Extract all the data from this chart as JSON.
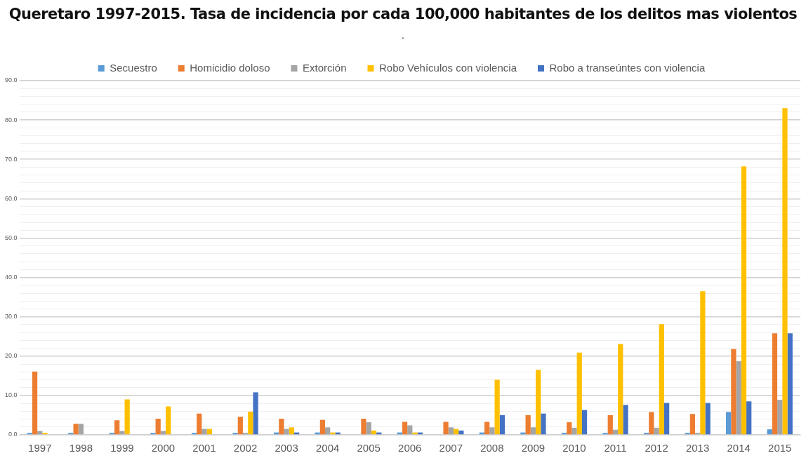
{
  "chart_data": {
    "type": "bar",
    "title": "Queretaro 1997-2015. Tasa de incidencia por cada 100,000 habitantes de los delitos mas violentos",
    "subtitle": ".",
    "categories": [
      "1997",
      "1998",
      "1999",
      "2000",
      "2001",
      "2002",
      "2003",
      "2004",
      "2005",
      "2006",
      "2007",
      "2008",
      "2009",
      "2010",
      "2011",
      "2012",
      "2013",
      "2014",
      "2015"
    ],
    "series": [
      {
        "name": "Secuestro",
        "color": "#5b9bd5",
        "values": [
          0.5,
          0.5,
          0.5,
          0.5,
          0.5,
          0.5,
          0.6,
          0.6,
          0,
          0.6,
          0,
          0.6,
          0.6,
          0.5,
          0.5,
          0.5,
          0.5,
          5.8,
          1.4
        ]
      },
      {
        "name": "Homicidio doloso",
        "color": "#ed7d31",
        "values": [
          16.1,
          2.8,
          3.7,
          4.1,
          5.4,
          4.6,
          4.1,
          3.8,
          4.1,
          3.3,
          3.3,
          3.3,
          5.0,
          3.2,
          5.0,
          5.8,
          5.3,
          21.8,
          25.8
        ]
      },
      {
        "name": "Extorción",
        "color": "#a5a5a5",
        "values": [
          1.0,
          2.8,
          1.0,
          1.0,
          1.5,
          0.5,
          1.5,
          1.9,
          3.2,
          2.4,
          1.9,
          1.9,
          1.9,
          1.8,
          1.3,
          1.8,
          0.5,
          18.7,
          8.9
        ]
      },
      {
        "name": "Robo Vehículos con violencia",
        "color": "#ffc000",
        "values": [
          0.5,
          0,
          9.0,
          7.2,
          1.5,
          5.9,
          1.9,
          0.6,
          1.1,
          0.6,
          1.5,
          14.0,
          16.5,
          20.9,
          23.1,
          28.1,
          36.5,
          68.2,
          83.0
        ]
      },
      {
        "name": "Robo a transeúntes con violencia",
        "color": "#4472c4",
        "values": [
          0,
          0,
          0,
          0,
          0,
          10.8,
          0.6,
          0.6,
          0.6,
          0.6,
          1.1,
          5.0,
          5.4,
          6.3,
          7.6,
          8.1,
          8.1,
          8.5,
          25.8
        ]
      }
    ],
    "ylim": [
      0,
      90
    ],
    "yticks": [
      {
        "value": 0,
        "label": "0.0"
      },
      {
        "value": 2,
        "label": null
      },
      {
        "value": 4,
        "label": null
      },
      {
        "value": 6,
        "label": null
      },
      {
        "value": 8,
        "label": null
      },
      {
        "value": 10,
        "label": "10.0"
      },
      {
        "value": 12,
        "label": null
      },
      {
        "value": 14,
        "label": null
      },
      {
        "value": 16,
        "label": null
      },
      {
        "value": 18,
        "label": null
      },
      {
        "value": 20,
        "label": "20.0"
      },
      {
        "value": 22,
        "label": null
      },
      {
        "value": 24,
        "label": null
      },
      {
        "value": 26,
        "label": null
      },
      {
        "value": 28,
        "label": null
      },
      {
        "value": 30,
        "label": "30.0"
      },
      {
        "value": 32,
        "label": null
      },
      {
        "value": 34,
        "label": null
      },
      {
        "value": 36,
        "label": null
      },
      {
        "value": 38,
        "label": null
      },
      {
        "value": 40,
        "label": "40.0"
      },
      {
        "value": 42,
        "label": null
      },
      {
        "value": 44,
        "label": null
      },
      {
        "value": 46,
        "label": null
      },
      {
        "value": 48,
        "label": null
      },
      {
        "value": 50,
        "label": "50.0"
      },
      {
        "value": 52,
        "label": null
      },
      {
        "value": 54,
        "label": null
      },
      {
        "value": 56,
        "label": null
      },
      {
        "value": 58,
        "label": null
      },
      {
        "value": 60,
        "label": "60.0"
      },
      {
        "value": 62,
        "label": null
      },
      {
        "value": 64,
        "label": null
      },
      {
        "value": 66,
        "label": null
      },
      {
        "value": 68,
        "label": null
      },
      {
        "value": 70,
        "label": "70.0"
      },
      {
        "value": 72,
        "label": null
      },
      {
        "value": 74,
        "label": null
      },
      {
        "value": 76,
        "label": null
      },
      {
        "value": 78,
        "label": null
      },
      {
        "value": 80,
        "label": "80.0"
      },
      {
        "value": 82,
        "label": null
      },
      {
        "value": 84,
        "label": null
      },
      {
        "value": 86,
        "label": null
      },
      {
        "value": 88,
        "label": null
      },
      {
        "value": 90,
        "label": "90.0"
      }
    ],
    "grid": "y",
    "legend": "top"
  }
}
